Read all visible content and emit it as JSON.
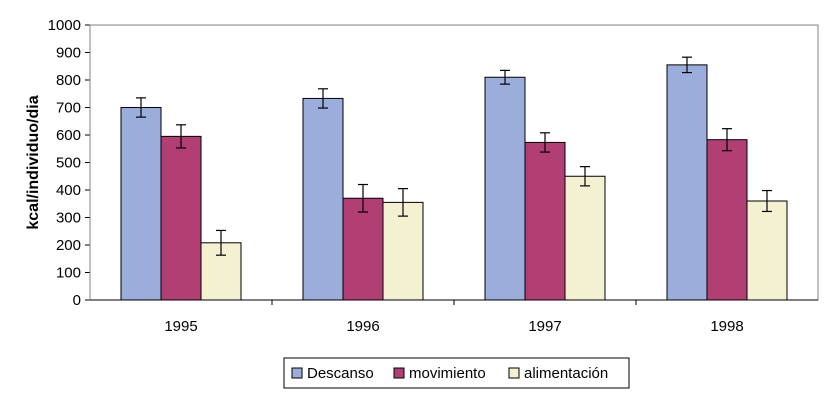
{
  "chart_data": {
    "type": "bar",
    "title": "",
    "xlabel": "",
    "ylabel": "kcal/individuo/dia",
    "ylim": [
      0,
      1000
    ],
    "yticks": [
      0,
      100,
      200,
      300,
      400,
      500,
      600,
      700,
      800,
      900,
      1000
    ],
    "categories": [
      "1995",
      "1996",
      "1997",
      "1998"
    ],
    "series": [
      {
        "name": "Descanso",
        "color": "#9aaddb",
        "values": [
          700,
          733,
          810,
          855
        ],
        "errors": [
          35,
          35,
          25,
          28
        ]
      },
      {
        "name": "movimiento",
        "color": "#b23f74",
        "values": [
          595,
          370,
          573,
          583
        ],
        "errors": [
          42,
          50,
          35,
          40
        ]
      },
      {
        "name": "alimentación",
        "color": "#f4f0d2",
        "values": [
          208,
          355,
          450,
          360
        ],
        "errors": [
          45,
          50,
          35,
          38
        ]
      }
    ],
    "grid": false,
    "legend_position": "bottom",
    "error_bars": true
  }
}
